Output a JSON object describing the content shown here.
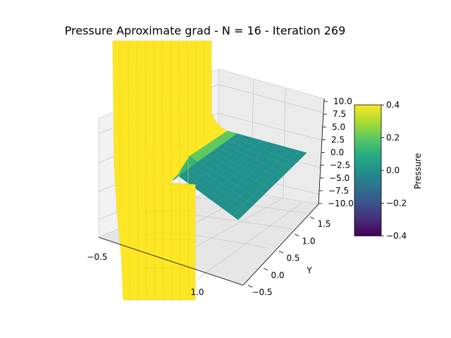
{
  "chart_data": {
    "type": "surface3d",
    "title": "Pressure Aproximate grad - N = 16 - Iteration 269",
    "xlabel": "",
    "ylabel": "Y",
    "zlabel": "",
    "x_ticks": [
      "−0.5",
      "1.0"
    ],
    "y_ticks": [
      "−0.5",
      "0.0",
      "0.5",
      "1.0",
      "1.5"
    ],
    "z_ticks": [
      "10.0",
      "7.5",
      "5.0",
      "2.5",
      "0.0",
      "−2.5",
      "−5.0",
      "−7.5",
      "−10.0"
    ],
    "zlim": [
      -10,
      10
    ],
    "grid": true,
    "colorbar": {
      "label": "Pressure",
      "ticks": [
        "0.4",
        "0.2",
        "0.0",
        "−0.2",
        "−0.4"
      ],
      "range": [
        -0.4,
        0.4
      ],
      "colormap": "viridis"
    },
    "surface_colors": {
      "high": "#fde725",
      "flat": "#21918c",
      "transition": "#5ec962"
    }
  }
}
